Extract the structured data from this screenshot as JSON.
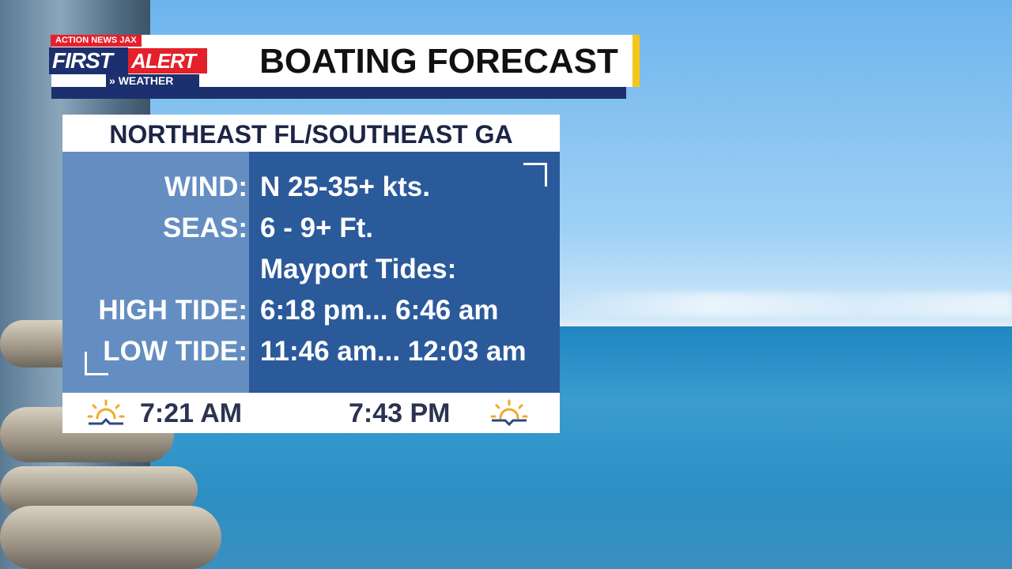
{
  "logo": {
    "top": "ACTION NEWS JAX",
    "first": "FIRST",
    "alert": "ALERT",
    "weather": "WEATHER"
  },
  "title": "BOATING FORECAST",
  "panel": {
    "region": "NORTHEAST FL/SOUTHEAST GA",
    "rows": [
      {
        "label": "WIND:",
        "value": "N 25-35+ kts."
      },
      {
        "label": "SEAS:",
        "value": "6 - 9+ Ft."
      },
      {
        "label": "",
        "value": "Mayport Tides:"
      },
      {
        "label": "HIGH TIDE:",
        "value": "6:18 pm... 6:46 am"
      },
      {
        "label": "LOW TIDE:",
        "value": "11:46 am... 12:03 am"
      }
    ],
    "sunrise": "7:21 AM",
    "sunset": "7:43 PM"
  },
  "colors": {
    "navy": "#1c2f6e",
    "red": "#e4202a",
    "yellow": "#f5c518",
    "panel_blue": "#2b5a9b",
    "sun": "#f2a92a"
  }
}
